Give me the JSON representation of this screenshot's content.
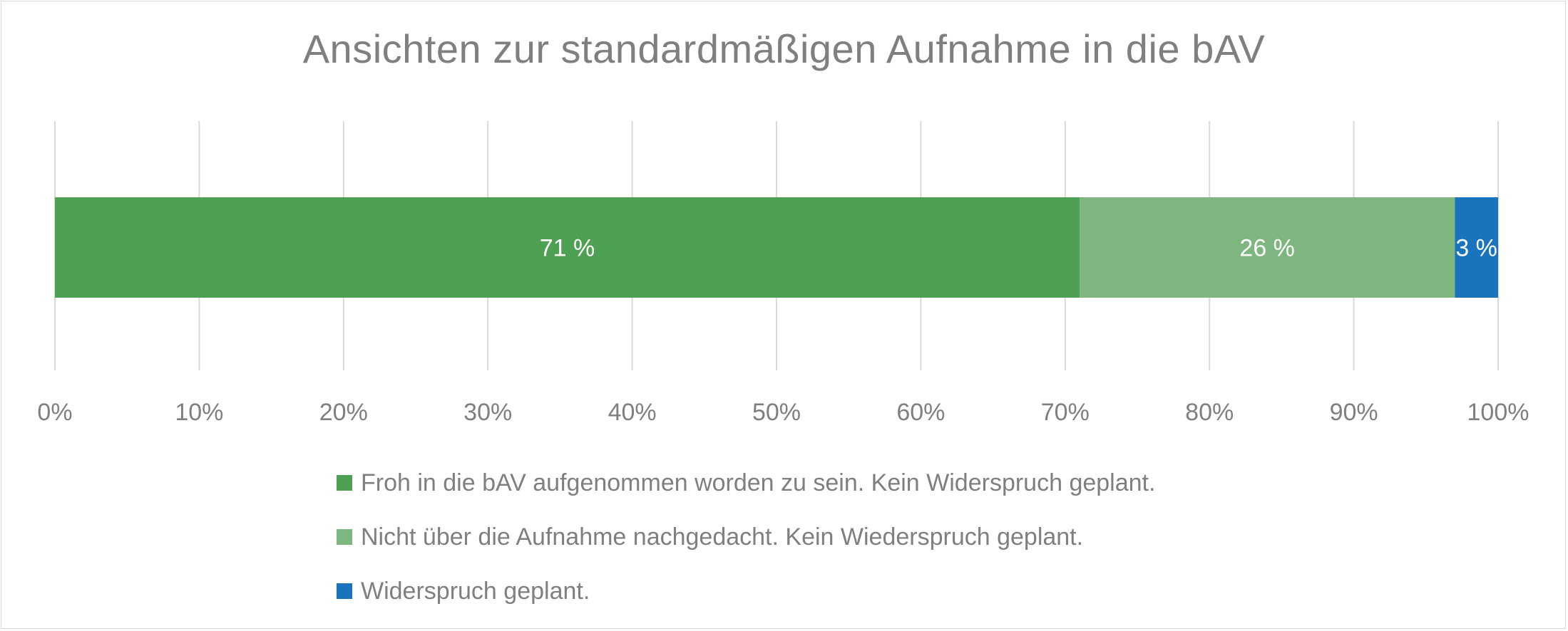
{
  "chart_data": {
    "type": "bar",
    "orientation": "horizontal",
    "stacked": true,
    "normalized_percent": true,
    "title": "Ansichten zur standardmäßigen Aufnahme in die bAV",
    "xlim": [
      0,
      100
    ],
    "x_ticks": [
      "0%",
      "10%",
      "20%",
      "30%",
      "40%",
      "50%",
      "60%",
      "70%",
      "80%",
      "90%",
      "100%"
    ],
    "grid": "vertical",
    "legend_position": "bottom",
    "series": [
      {
        "name": "Froh in die bAV aufgenommen worden zu sein. Kein Widerspruch geplant.",
        "value": 71,
        "label": "71 %",
        "color": "#4ea152"
      },
      {
        "name": "Nicht über die Aufnahme nachgedacht. Kein Wiederspruch geplant.",
        "value": 26,
        "label": "26 %",
        "color": "#7db77f"
      },
      {
        "name": "Widerspruch geplant.",
        "value": 3,
        "label": "3 %",
        "color": "#1a74bd"
      }
    ]
  },
  "colors": {
    "text": "#7f7f7f",
    "grid": "#d9d9d9",
    "bar_label": "#ffffff"
  }
}
